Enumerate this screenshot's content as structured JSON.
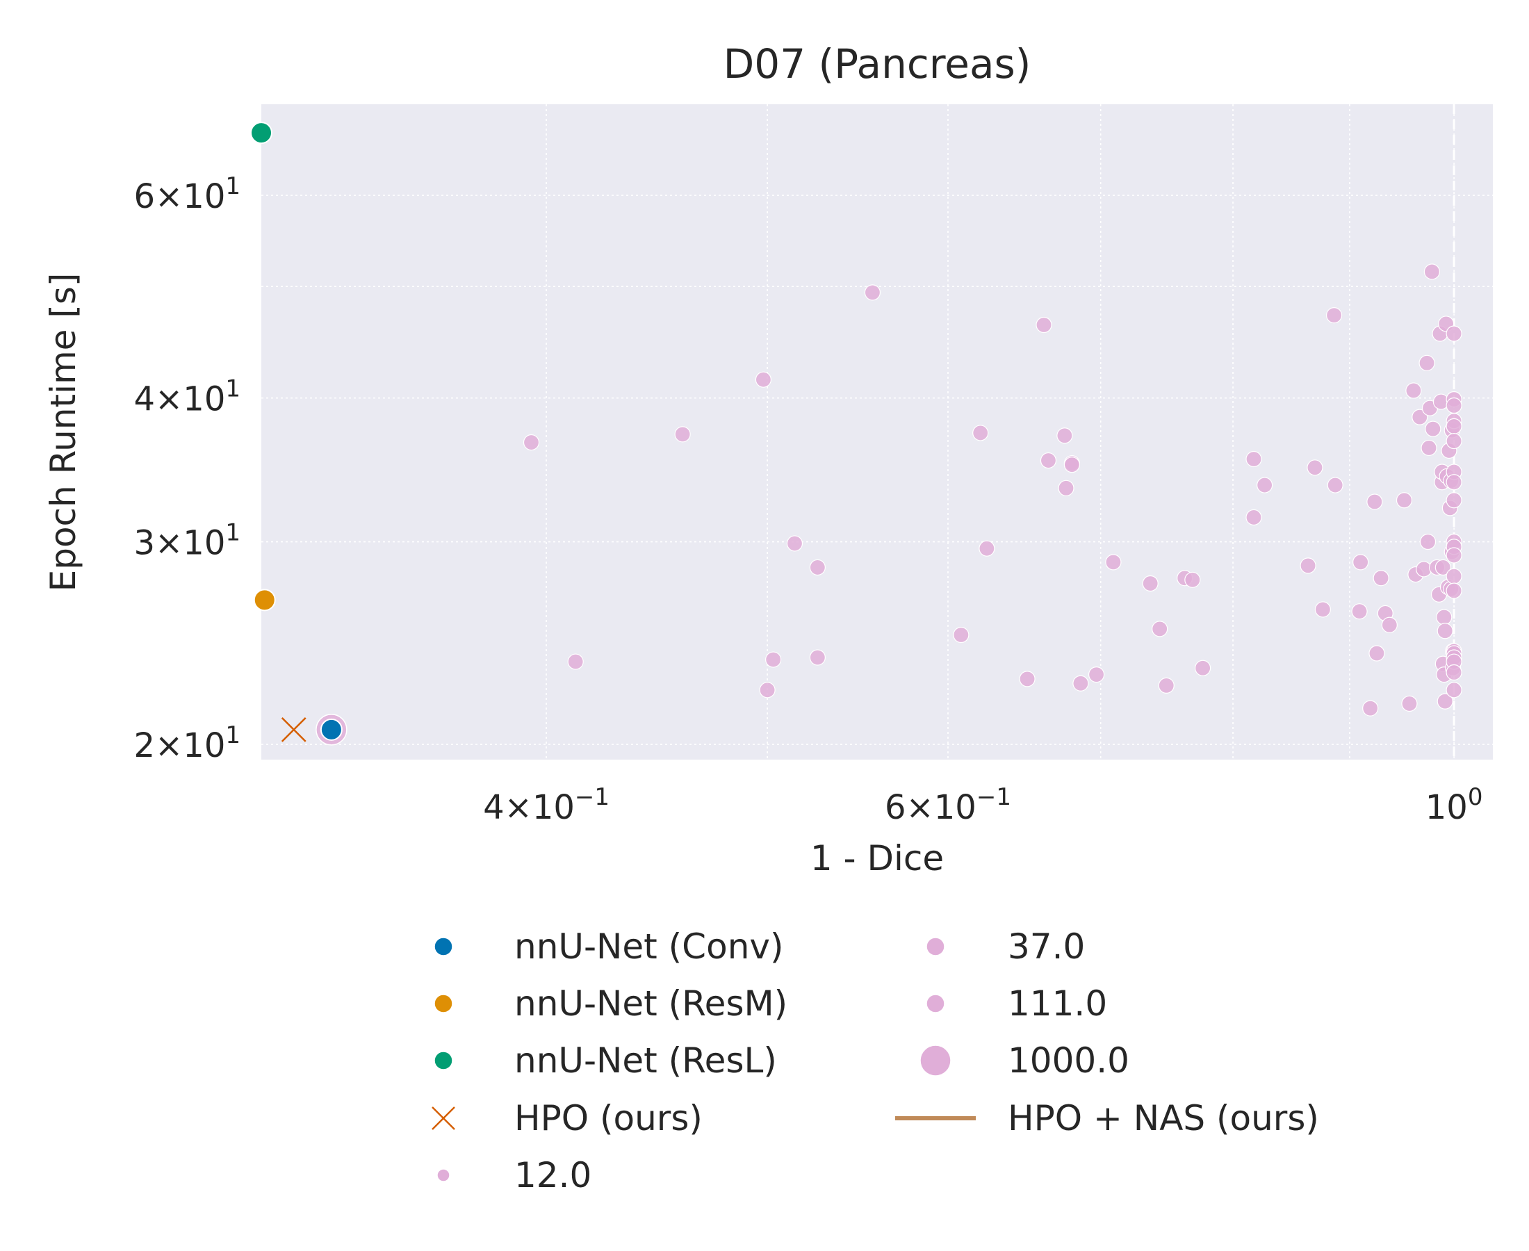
{
  "chart_data": {
    "type": "scatter",
    "title": "D07 (Pancreas)",
    "xlabel": "1 - Dice",
    "ylabel": "Epoch Runtime [s]",
    "x_scale": "log",
    "y_scale": "log",
    "xlim": [
      0.3,
      1.04
    ],
    "ylim": [
      19.4,
      72
    ],
    "grid": true,
    "reference_line_x": 1.0,
    "x_ticks": [
      {
        "value": 0.4,
        "label_base": "4×10",
        "label_exp": "−1"
      },
      {
        "value": 0.6,
        "label_base": "6×10",
        "label_exp": "−1"
      },
      {
        "value": 1.0,
        "label_base": "10",
        "label_exp": "0"
      }
    ],
    "y_ticks": [
      {
        "value": 20,
        "label_base": "2×10",
        "label_exp": "1"
      },
      {
        "value": 30,
        "label_base": "3×10",
        "label_exp": "1"
      },
      {
        "value": 40,
        "label_base": "4×10",
        "label_exp": "1"
      },
      {
        "value": 60,
        "label_base": "6×10",
        "label_exp": "1"
      }
    ],
    "x_minor_grid": [
      0.5,
      0.7,
      0.8,
      0.9
    ],
    "y_minor_grid": [
      50
    ],
    "colors": {
      "background": "#eaeaf2",
      "conv": "#0173b2",
      "resm": "#de8f05",
      "resl": "#029e73",
      "hpo": "#d55e00",
      "hpo_nas": "#c08a58",
      "trials": "#e0aed8"
    },
    "series": [
      {
        "name": "nnU-Net (Conv)",
        "marker": "circle",
        "color": "#0173b2",
        "points": [
          [
            0.322,
            20.6
          ]
        ]
      },
      {
        "name": "nnU-Net (ResM)",
        "marker": "circle",
        "color": "#de8f05",
        "points": [
          [
            0.301,
            26.7
          ]
        ]
      },
      {
        "name": "nnU-Net (ResL)",
        "marker": "circle",
        "color": "#029e73",
        "points": [
          [
            0.3,
            68
          ]
        ]
      },
      {
        "name": "HPO (ours)",
        "marker": "x",
        "color": "#d55e00",
        "points": [
          [
            0.31,
            20.6
          ]
        ]
      },
      {
        "name": "HPO + NAS (ours)",
        "marker": "line",
        "color": "#c08a58",
        "points": []
      }
    ],
    "trial_points": {
      "color": "#e0aed8",
      "size_legend": [
        "12.0",
        "37.0",
        "111.0",
        "1000.0"
      ],
      "highlight": {
        "x": 0.322,
        "y": 20.6,
        "budget": "1000.0"
      },
      "points": [
        [
          0.394,
          36.6
        ],
        [
          0.412,
          23.6
        ],
        [
          0.459,
          37.2
        ],
        [
          0.498,
          41.5
        ],
        [
          0.5,
          22.3
        ],
        [
          0.503,
          23.7
        ],
        [
          0.514,
          29.9
        ],
        [
          0.526,
          28.5
        ],
        [
          0.526,
          23.8
        ],
        [
          0.556,
          49.4
        ],
        [
          0.608,
          24.9
        ],
        [
          0.62,
          37.3
        ],
        [
          0.624,
          29.6
        ],
        [
          0.65,
          22.8
        ],
        [
          0.661,
          46.3
        ],
        [
          0.664,
          35.3
        ],
        [
          0.675,
          37.1
        ],
        [
          0.676,
          33.4
        ],
        [
          0.68,
          35.1
        ],
        [
          0.68,
          35.0
        ],
        [
          0.686,
          22.6
        ],
        [
          0.697,
          23.0
        ],
        [
          0.709,
          28.8
        ],
        [
          0.736,
          27.6
        ],
        [
          0.743,
          25.2
        ],
        [
          0.748,
          22.5
        ],
        [
          0.762,
          27.9
        ],
        [
          0.768,
          27.8
        ],
        [
          0.776,
          23.3
        ],
        [
          0.817,
          35.4
        ],
        [
          0.817,
          31.5
        ],
        [
          0.826,
          33.6
        ],
        [
          0.863,
          28.6
        ],
        [
          0.869,
          34.8
        ],
        [
          0.876,
          26.2
        ],
        [
          0.886,
          47.2
        ],
        [
          0.887,
          33.6
        ],
        [
          0.909,
          26.1
        ],
        [
          0.91,
          28.8
        ],
        [
          0.919,
          21.5
        ],
        [
          0.923,
          32.5
        ],
        [
          0.925,
          24.0
        ],
        [
          0.929,
          27.9
        ],
        [
          0.933,
          26.0
        ],
        [
          0.937,
          25.4
        ],
        [
          0.951,
          32.6
        ],
        [
          0.956,
          21.7
        ],
        [
          0.96,
          40.6
        ],
        [
          0.962,
          28.1
        ],
        [
          0.966,
          38.5
        ],
        [
          0.97,
          28.4
        ],
        [
          0.973,
          42.9
        ],
        [
          0.974,
          30.0
        ],
        [
          0.975,
          36.2
        ],
        [
          0.976,
          39.2
        ],
        [
          0.978,
          51.5
        ],
        [
          0.979,
          37.6
        ],
        [
          0.983,
          28.5
        ],
        [
          0.985,
          27.0
        ],
        [
          0.986,
          45.5
        ],
        [
          0.987,
          39.7
        ],
        [
          0.988,
          33.8
        ],
        [
          0.988,
          34.5
        ],
        [
          0.989,
          28.5
        ],
        [
          0.989,
          23.5
        ],
        [
          0.99,
          25.8
        ],
        [
          0.99,
          23.0
        ],
        [
          0.991,
          21.8
        ],
        [
          0.991,
          25.1
        ],
        [
          0.992,
          46.4
        ],
        [
          0.993,
          34.2
        ],
        [
          0.994,
          27.4
        ],
        [
          0.995,
          36.0
        ],
        [
          0.996,
          32.1
        ],
        [
          0.997,
          33.9
        ],
        [
          0.997,
          27.3
        ],
        [
          0.998,
          37.5
        ],
        [
          0.998,
          29.4
        ],
        [
          0.999,
          24.1
        ],
        [
          0.999,
          23.3
        ],
        [
          1.0,
          45.5
        ],
        [
          1.0,
          39.9
        ],
        [
          1.0,
          39.4
        ],
        [
          1.0,
          38.2
        ],
        [
          1.0,
          37.8
        ],
        [
          1.0,
          36.7
        ],
        [
          1.0,
          34.5
        ],
        [
          1.0,
          33.8
        ],
        [
          1.0,
          32.6
        ],
        [
          1.0,
          30.0
        ],
        [
          1.0,
          29.7
        ],
        [
          1.0,
          29.2
        ],
        [
          1.0,
          28.0
        ],
        [
          1.0,
          27.2
        ],
        [
          1.0,
          24.1
        ],
        [
          1.0,
          24.0
        ],
        [
          1.0,
          23.8
        ],
        [
          1.0,
          23.6
        ],
        [
          1.0,
          23.1
        ],
        [
          1.0,
          22.3
        ]
      ]
    },
    "legend": {
      "placement": "bottom-center",
      "columns": [
        [
          {
            "label": "nnU-Net (Conv)",
            "kind": "circle",
            "color": "#0173b2",
            "size": "medium"
          },
          {
            "label": "nnU-Net (ResM)",
            "kind": "circle",
            "color": "#de8f05",
            "size": "medium"
          },
          {
            "label": "nnU-Net (ResL)",
            "kind": "circle",
            "color": "#029e73",
            "size": "medium"
          },
          {
            "label": "HPO (ours)",
            "kind": "x",
            "color": "#d55e00",
            "size": "medium"
          },
          {
            "label": "12.0",
            "kind": "circle",
            "color": "#e0aed8",
            "size": "small"
          }
        ],
        [
          {
            "label": "37.0",
            "kind": "circle",
            "color": "#e0aed8",
            "size": "medium"
          },
          {
            "label": "111.0",
            "kind": "circle",
            "color": "#e0aed8",
            "size": "medium"
          },
          {
            "label": "1000.0",
            "kind": "circle",
            "color": "#e0aed8",
            "size": "large"
          },
          {
            "label": "HPO + NAS (ours)",
            "kind": "line",
            "color": "#c08a58",
            "size": "medium"
          }
        ]
      ]
    }
  }
}
